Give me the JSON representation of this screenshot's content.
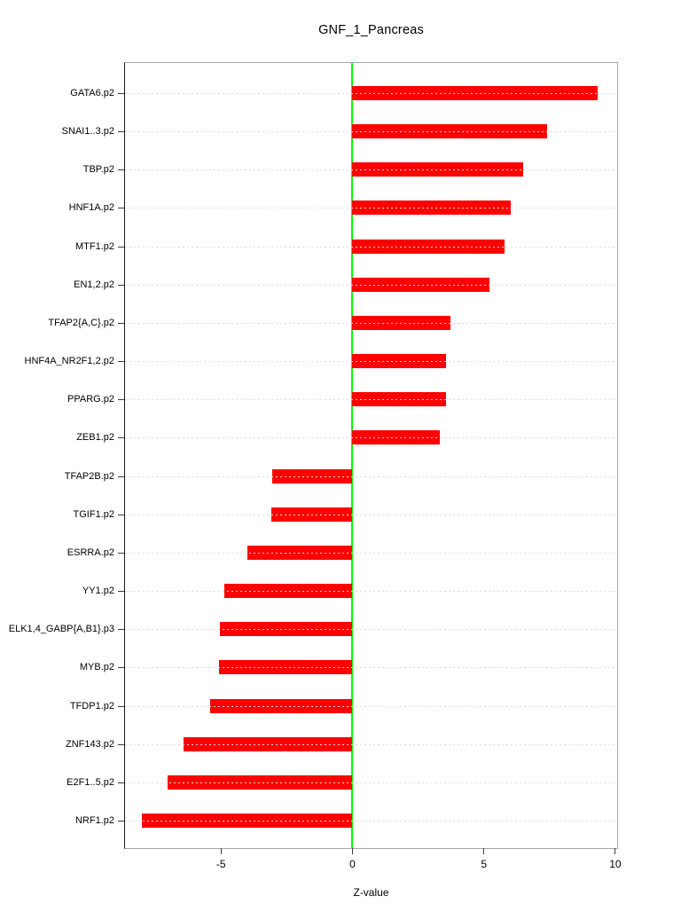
{
  "chart_data": {
    "type": "bar",
    "orientation": "horizontal",
    "title": "GNF_1_Pancreas",
    "xlabel": "Z-value",
    "categories": [
      "GATA6.p2",
      "SNAI1..3.p2",
      "TBP.p2",
      "HNF1A.p2",
      "MTF1.p2",
      "EN1,2.p2",
      "TFAP2{A,C}.p2",
      "HNF4A_NR2F1,2.p2",
      "PPARG.p2",
      "ZEB1.p2",
      "TFAP2B.p2",
      "TGIF1.p2",
      "ESRRA.p2",
      "YY1.p2",
      "ELK1,4_GABP{A,B1}.p3",
      "MYB.p2",
      "TFDP1.p2",
      "ZNF143.p2",
      "E2F1..5.p2",
      "NRF1.p2"
    ],
    "values": [
      9.33,
      7.42,
      6.5,
      6.03,
      5.8,
      5.22,
      3.74,
      3.57,
      3.56,
      3.31,
      -3.04,
      -3.1,
      -3.99,
      -4.86,
      -5.04,
      -5.09,
      -5.41,
      -6.44,
      -7.03,
      -8.01
    ],
    "xlim": [
      -8.65,
      10.07
    ],
    "xticks": [
      -5,
      0,
      5,
      10
    ],
    "bar_color": "#ff0000",
    "zero_line_color": "#00ff00",
    "grid": true,
    "grid_style": "dashed",
    "sort_order": "descending",
    "legend": "none"
  }
}
